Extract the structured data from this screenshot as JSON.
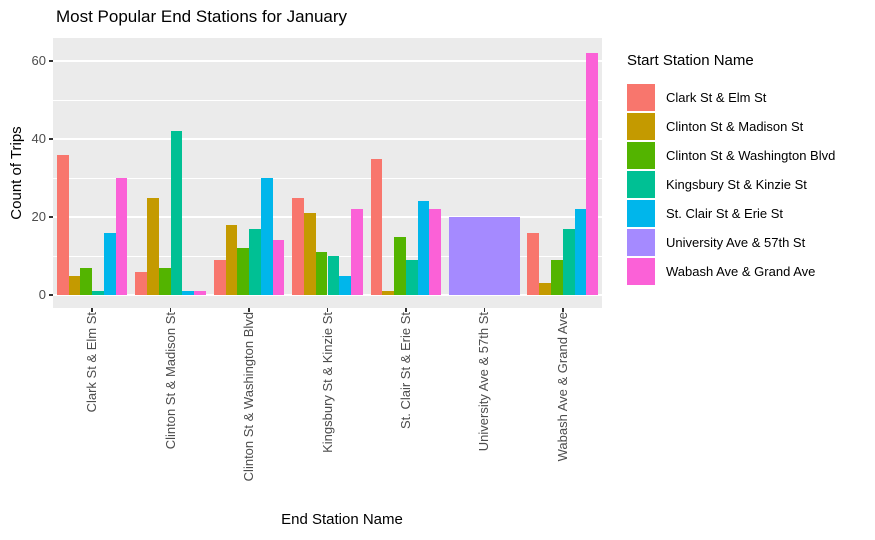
{
  "chart_data": {
    "type": "bar",
    "title": "Most Popular End Stations for January",
    "xlabel": "End Station Name",
    "ylabel": "Count of Trips",
    "legend_title": "Start Station Name",
    "legend_position": "right",
    "grid": true,
    "panel_bg": "#EBEBEB",
    "grid_color": "#FFFFFF",
    "ylim": [
      0,
      65
    ],
    "yticks_major": [
      0,
      20,
      40,
      60
    ],
    "yticks_minor": [
      10,
      30,
      50
    ],
    "categories": [
      "Clark St & Elm St",
      "Clinton St & Madison St",
      "Clinton St & Washington Blvd",
      "Kingsbury St & Kinzie St",
      "St. Clair St & Erie St",
      "University Ave & 57th St",
      "Wabash Ave & Grand Ave"
    ],
    "series": [
      {
        "name": "Clark St & Elm St",
        "color": "#F8766D",
        "values": [
          36,
          6,
          9,
          25,
          35,
          null,
          16
        ]
      },
      {
        "name": "Clinton St & Madison St",
        "color": "#C49A00",
        "values": [
          5,
          25,
          18,
          21,
          1,
          null,
          3
        ]
      },
      {
        "name": "Clinton St & Washington Blvd",
        "color": "#53B400",
        "values": [
          7,
          7,
          12,
          11,
          15,
          null,
          9
        ]
      },
      {
        "name": "Kingsbury St & Kinzie St",
        "color": "#00C094",
        "values": [
          1,
          42,
          17,
          10,
          9,
          null,
          17
        ]
      },
      {
        "name": "St. Clair St & Erie St",
        "color": "#00B6EB",
        "values": [
          16,
          1,
          30,
          5,
          24,
          null,
          22
        ]
      },
      {
        "name": "University Ave & 57th St",
        "color": "#A58AFF",
        "values": [
          null,
          null,
          null,
          null,
          null,
          20,
          null
        ]
      },
      {
        "name": "Wabash Ave & Grand Ave",
        "color": "#FB61D7",
        "values": [
          30,
          1,
          14,
          22,
          22,
          null,
          62
        ]
      }
    ]
  }
}
